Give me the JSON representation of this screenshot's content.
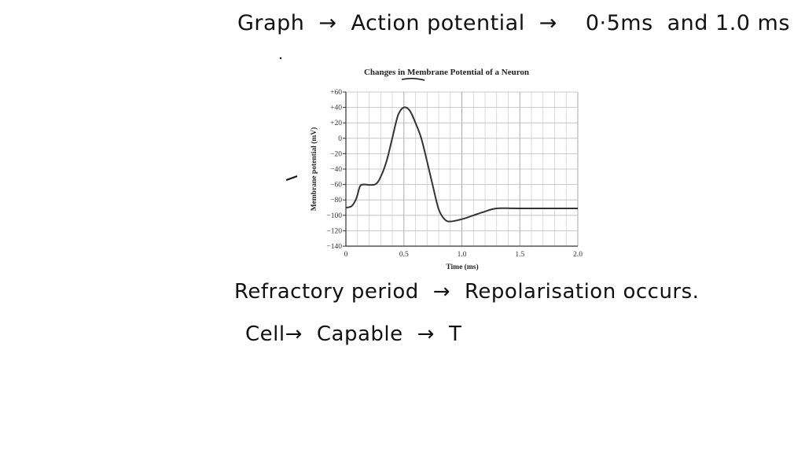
{
  "notes": {
    "line1": [
      "Graph",
      "→",
      "Action potential",
      "→",
      "0·5ms",
      "and 1.0 ms"
    ],
    "line2": [
      "Refractory period",
      "→",
      "Repolarisation occurs."
    ],
    "line3": [
      "Cell→",
      "Capable",
      "→",
      "T"
    ]
  },
  "chart_data": {
    "type": "line",
    "title": "Changes in Membrane Potential of a Neuron",
    "xlabel": "Time (ms)",
    "ylabel": "Membrane potential (mV)",
    "xlim": [
      0,
      2.0
    ],
    "ylim": [
      -140,
      60
    ],
    "xticks": [
      "0",
      "0.5",
      "1.0",
      "1.5",
      "2.0"
    ],
    "yticks": [
      "+60",
      "+40",
      "+20",
      "0",
      "-20",
      "-40",
      "-60",
      "-80",
      "-100",
      "-120",
      "-140"
    ],
    "grid": true,
    "line_color": "#333333",
    "x": [
      0,
      0.05,
      0.09,
      0.12,
      0.15,
      0.25,
      0.3,
      0.35,
      0.4,
      0.45,
      0.5,
      0.55,
      0.6,
      0.65,
      0.7,
      0.75,
      0.8,
      0.85,
      0.9,
      1.0,
      1.1,
      1.2,
      1.3,
      1.5,
      2.0
    ],
    "y": [
      -90,
      -88,
      -78,
      -63,
      -60,
      -60,
      -50,
      -30,
      0,
      30,
      40,
      36,
      20,
      0,
      -30,
      -62,
      -92,
      -105,
      -108,
      -105,
      -100,
      -95,
      -91,
      -91,
      -91
    ]
  }
}
